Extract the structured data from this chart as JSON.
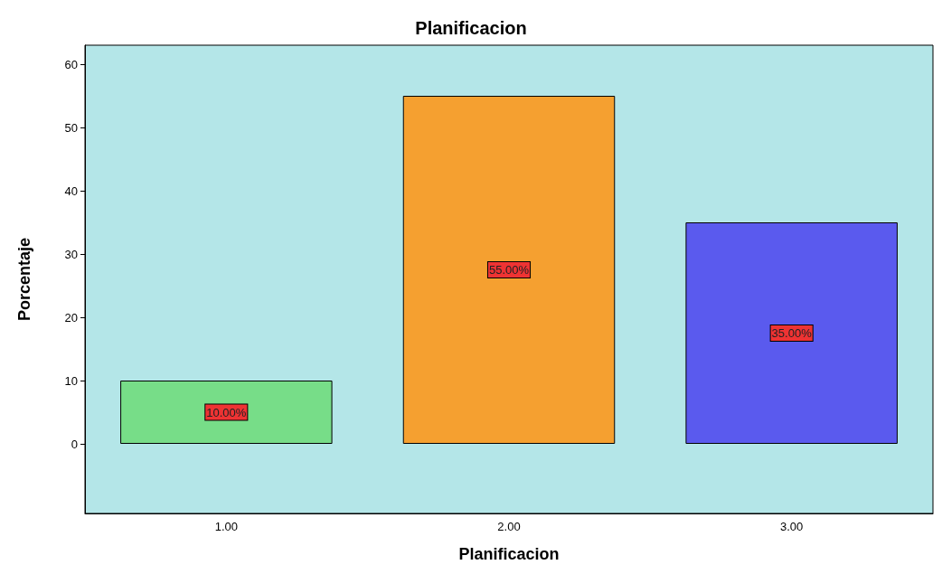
{
  "chart_data": {
    "type": "bar",
    "title": "Planificacion",
    "xlabel": "Planificacion",
    "ylabel": "Porcentaje",
    "categories": [
      "1.00",
      "2.00",
      "3.00"
    ],
    "values": [
      10,
      55,
      35
    ],
    "colors": [
      "#77dd88",
      "#f5a030",
      "#5a5aee"
    ],
    "value_labels": [
      "10.00%",
      "55.00%",
      "35.00%"
    ],
    "ylim": [
      -11,
      63
    ],
    "yticks": [
      0,
      10,
      20,
      30,
      40,
      50,
      60
    ],
    "grid": false
  }
}
